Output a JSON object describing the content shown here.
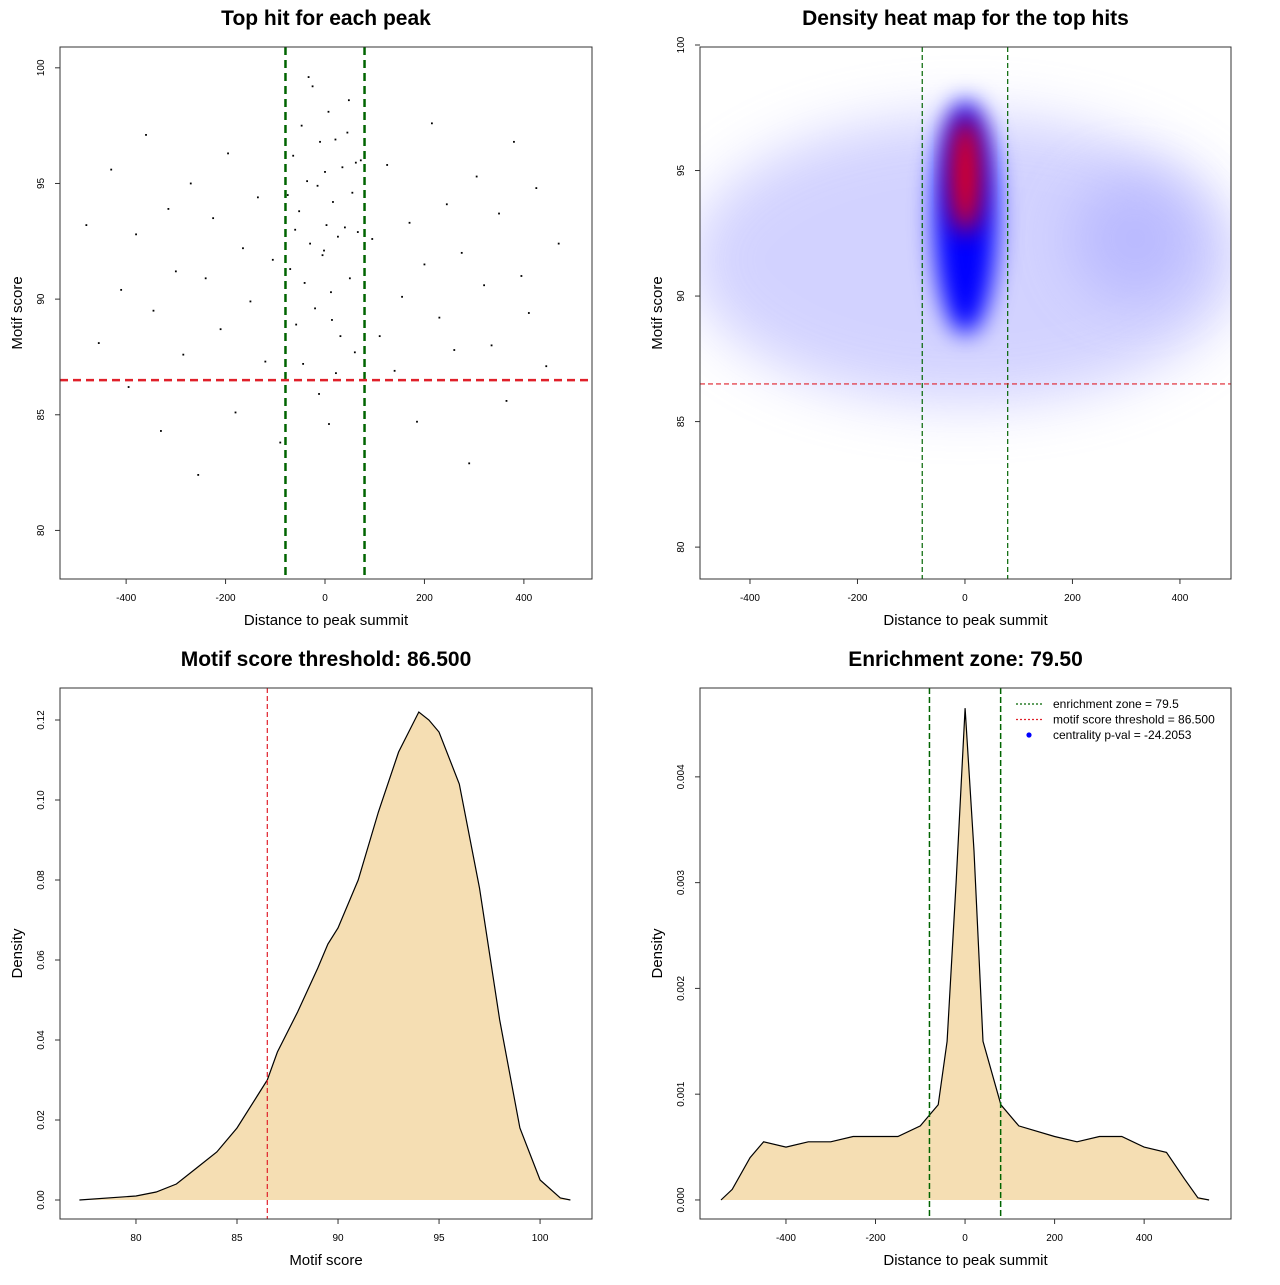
{
  "chart_data": [
    {
      "type": "scatter",
      "title": "Top hit for each peak",
      "xlabel": "Distance to peak summit",
      "ylabel": "Motif score",
      "xlim": [
        -533,
        537
      ],
      "ylim": [
        77.9,
        100.9
      ],
      "xticks": [
        -400,
        -200,
        0,
        200,
        400
      ],
      "yticks": [
        80,
        85,
        90,
        95,
        100
      ],
      "color": "#000000",
      "x": [
        -480,
        -455,
        -430,
        -410,
        -395,
        -380,
        -360,
        -345,
        -330,
        -315,
        -300,
        -285,
        -270,
        -255,
        -240,
        -225,
        -210,
        -195,
        -180,
        -165,
        -150,
        -135,
        -120,
        -105,
        -90,
        95,
        110,
        125,
        140,
        155,
        170,
        185,
        200,
        215,
        230,
        245,
        260,
        275,
        290,
        305,
        320,
        335,
        350,
        365,
        380,
        395,
        410,
        425,
        445,
        470,
        -75,
        -70,
        -64,
        -58,
        -52,
        -47,
        -41,
        -36,
        -30,
        -25,
        -20,
        -15,
        -10,
        -5,
        0,
        3,
        7,
        12,
        16,
        21,
        26,
        31,
        35,
        40,
        45,
        50,
        55,
        60,
        66,
        72,
        -12,
        8,
        -33,
        22,
        -60,
        48,
        -2,
        14,
        -44,
        62
      ],
      "y": [
        93.2,
        88.1,
        95.6,
        90.4,
        86.2,
        92.8,
        97.1,
        89.5,
        84.3,
        93.9,
        91.2,
        87.6,
        95.0,
        82.4,
        90.9,
        93.5,
        88.7,
        96.3,
        85.1,
        92.2,
        89.9,
        94.4,
        87.3,
        91.7,
        83.8,
        92.6,
        88.4,
        95.8,
        86.9,
        90.1,
        93.3,
        84.7,
        91.5,
        97.6,
        89.2,
        94.1,
        87.8,
        92.0,
        82.9,
        95.3,
        90.6,
        88.0,
        93.7,
        85.6,
        96.8,
        91.0,
        89.4,
        94.8,
        87.1,
        92.4,
        94.5,
        91.3,
        96.2,
        88.9,
        93.8,
        97.5,
        90.7,
        95.1,
        92.4,
        99.2,
        89.6,
        94.9,
        96.8,
        91.9,
        95.5,
        93.2,
        98.1,
        90.3,
        94.2,
        96.9,
        92.7,
        88.4,
        95.7,
        93.1,
        97.2,
        90.9,
        94.6,
        87.7,
        92.9,
        96.0,
        85.9,
        84.6,
        99.6,
        86.8,
        93.0,
        98.6,
        92.1,
        89.1,
        87.2,
        95.9
      ],
      "vlines": [
        -79.5,
        79.5
      ],
      "vline_color": "#006400",
      "hline": 86.5,
      "hline_color": "#e0202a"
    },
    {
      "type": "heatmap",
      "title": "Density heat map for the top hits",
      "xlabel": "Distance to peak summit",
      "ylabel": "Motif score",
      "xlim": [
        -493,
        495
      ],
      "ylim": [
        78.73,
        99.92
      ],
      "xticks": [
        -400,
        -200,
        0,
        200,
        400
      ],
      "yticks": [
        80,
        85,
        90,
        95,
        100
      ],
      "vlines": [
        -79.5,
        79.5
      ],
      "vline_color": "#006400",
      "hline": 86.5,
      "hline_color": "#e0202a"
    },
    {
      "type": "area",
      "title": "Motif score threshold: 86.500",
      "xlabel": "Motif score",
      "ylabel": "Density",
      "xlim": [
        76.24,
        102.57
      ],
      "ylim": [
        -0.00475,
        0.128
      ],
      "xticks": [
        80,
        85,
        90,
        95,
        100
      ],
      "yticks": [
        {
          "value": 0,
          "label": "0.00"
        },
        {
          "value": 0.02,
          "label": "0.02"
        },
        {
          "value": 0.04,
          "label": "0.04"
        },
        {
          "value": 0.06,
          "label": "0.06"
        },
        {
          "value": 0.08,
          "label": "0.08"
        },
        {
          "value": 0.1,
          "label": "0.10"
        },
        {
          "value": 0.12,
          "label": "0.12"
        }
      ],
      "color": "#f5deb3",
      "x": [
        77.2,
        80,
        81,
        82,
        83,
        84,
        85,
        86,
        86.5,
        87,
        88,
        89,
        89.5,
        90,
        91,
        92,
        93,
        94,
        94.5,
        95,
        96,
        97,
        98,
        99,
        100,
        101,
        101.5
      ],
      "values": [
        0,
        0.001,
        0.002,
        0.004,
        0.008,
        0.012,
        0.018,
        0.026,
        0.03,
        0.037,
        0.047,
        0.058,
        0.064,
        0.068,
        0.08,
        0.097,
        0.112,
        0.122,
        0.12,
        0.117,
        0.104,
        0.078,
        0.045,
        0.018,
        0.005,
        0.0005,
        0
      ],
      "vlines": [
        86.5
      ],
      "vline_color": "#e0202a"
    },
    {
      "type": "area",
      "title": "Enrichment zone: 79.50",
      "xlabel": "Distance to peak summit",
      "ylabel": "Density",
      "xlim": [
        -592,
        594
      ],
      "ylim": [
        -0.00018,
        0.00484
      ],
      "xticks": [
        -400,
        -200,
        0,
        200,
        400
      ],
      "yticks": [
        {
          "value": 0,
          "label": "0.000"
        },
        {
          "value": 0.001,
          "label": "0.001"
        },
        {
          "value": 0.002,
          "label": "0.002"
        },
        {
          "value": 0.003,
          "label": "0.003"
        },
        {
          "value": 0.004,
          "label": "0.004"
        }
      ],
      "color": "#f5deb3",
      "x": [
        -545,
        -520,
        -480,
        -450,
        -400,
        -350,
        -300,
        -250,
        -200,
        -150,
        -100,
        -60,
        -40,
        -20,
        0,
        20,
        40,
        80,
        120,
        200,
        250,
        300,
        350,
        400,
        450,
        490,
        520,
        545
      ],
      "values": [
        0,
        0.0001,
        0.0004,
        0.00055,
        0.0005,
        0.00055,
        0.00055,
        0.0006,
        0.0006,
        0.0006,
        0.0007,
        0.0009,
        0.0015,
        0.003,
        0.00465,
        0.0033,
        0.0015,
        0.0009,
        0.0007,
        0.0006,
        0.00055,
        0.0006,
        0.0006,
        0.0005,
        0.00045,
        0.0002,
        2e-05,
        0
      ],
      "vlines": [
        -79.5,
        79.5
      ],
      "vline_color": "#006400",
      "legend_position": "top-right",
      "legend": [
        {
          "label": "enrichment zone = 79.5",
          "color": "#006400",
          "symbol": "dotted-line"
        },
        {
          "label": "motif score threshold = 86.500",
          "color": "#e0202a",
          "symbol": "dotted-line"
        },
        {
          "label": "centrality p-val = -24.2053",
          "color": "#0000ff",
          "symbol": "point"
        }
      ]
    }
  ]
}
